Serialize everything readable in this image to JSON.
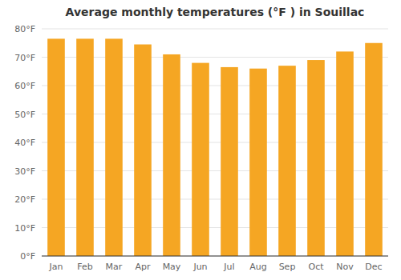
{
  "chart_data": {
    "type": "bar",
    "title": "Average monthly temperatures (°F ) in Souillac",
    "categories": [
      "Jan",
      "Feb",
      "Mar",
      "Apr",
      "May",
      "Jun",
      "Jul",
      "Aug",
      "Sep",
      "Oct",
      "Nov",
      "Dec"
    ],
    "values": [
      76.5,
      76.5,
      76.5,
      74.5,
      71.0,
      68.0,
      66.5,
      66.0,
      67.0,
      69.0,
      72.0,
      75.0
    ],
    "color": "#F5A623",
    "ylim": [
      0,
      80
    ],
    "yticks": [
      {
        "value": 0,
        "label": "0°F"
      },
      {
        "value": 10,
        "label": "10°F"
      },
      {
        "value": 20,
        "label": "20°F"
      },
      {
        "value": 30,
        "label": "30°F"
      },
      {
        "value": 40,
        "label": "40°F"
      },
      {
        "value": 50,
        "label": "50°F"
      },
      {
        "value": 60,
        "label": "60°F"
      },
      {
        "value": 70,
        "label": "70°F"
      },
      {
        "value": 80,
        "label": "80°F"
      }
    ],
    "grid": true
  }
}
